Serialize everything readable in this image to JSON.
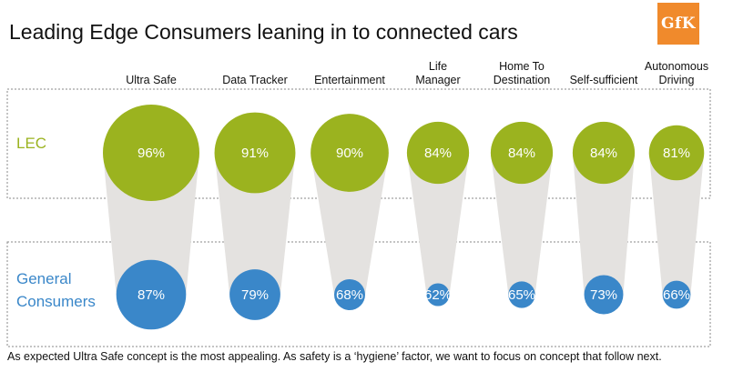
{
  "title": "Leading Edge Consumers leaning in to connected cars",
  "logo_text": "GfK",
  "footnote": "As expected Ultra Safe concept is the most appealing. As safety is a ‘hygiene’ factor, we want to focus on concept that follow next.",
  "colors": {
    "lec": "#9bb31f",
    "general": "#3a87c9",
    "connector": "#e4e2e0",
    "logo": "#f08a2c"
  },
  "chart_data": {
    "type": "bubble",
    "categories": [
      [
        "Ultra Safe"
      ],
      [
        "Data Tracker"
      ],
      [
        "Entertainment"
      ],
      [
        "Life",
        "Manager"
      ],
      [
        "Home To",
        "Destination"
      ],
      [
        "Self-sufficient"
      ],
      [
        "Autonomous",
        "Driving"
      ]
    ],
    "row_labels": {
      "lec": [
        "LEC"
      ],
      "general": [
        "General",
        "Consumers"
      ]
    },
    "series": [
      {
        "name": "LEC",
        "values": [
          96,
          91,
          90,
          84,
          84,
          84,
          81
        ]
      },
      {
        "name": "General Consumers",
        "values": [
          87,
          79,
          68,
          62,
          65,
          73,
          66
        ]
      }
    ],
    "value_suffix": "%"
  }
}
